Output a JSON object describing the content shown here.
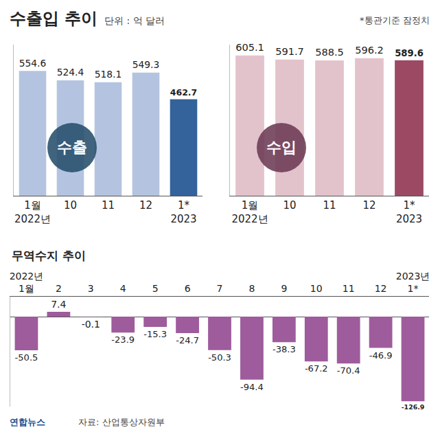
{
  "header": {
    "title": "수출입 추이",
    "unit": "단위 : 억 달러",
    "note": "*통관기준 잠정치"
  },
  "footer": {
    "source": "자료: 산업통상자원부",
    "credit": "연합뉴스"
  },
  "chart_data": [
    {
      "type": "bar",
      "title": "수출",
      "categories": [
        "1월\n2022년",
        "10",
        "11",
        "12",
        "1*\n2023"
      ],
      "values": [
        554.6,
        524.4,
        518.1,
        549.3,
        462.7
      ],
      "colors": [
        "#b4c4e0",
        "#b4c4e0",
        "#b4c4e0",
        "#b4c4e0",
        "#34629a"
      ],
      "ylim": [
        150,
        640
      ],
      "yticks": [],
      "grid": false,
      "data_labels": true,
      "tick_labels": "x"
    },
    {
      "type": "bar",
      "title": "수입",
      "categories": [
        "1월\n2022년",
        "10",
        "11",
        "12",
        "1*\n2023"
      ],
      "values": [
        605.1,
        591.7,
        588.5,
        596.2,
        589.6
      ],
      "colors": [
        "#e3c3cb",
        "#e3c3cb",
        "#e3c3cb",
        "#e3c3cb",
        "#9c4a64"
      ],
      "ylim": [
        150,
        640
      ],
      "yticks": [],
      "grid": false,
      "data_labels": true,
      "tick_labels": "x"
    },
    {
      "type": "bar",
      "title": "무역수지 추이",
      "categories": [
        "2022년\n1월",
        "2",
        "3",
        "4",
        "5",
        "6",
        "7",
        "8",
        "9",
        "10",
        "11",
        "12",
        "2023년\n1*"
      ],
      "values": [
        -50.5,
        7.4,
        -0.1,
        -23.9,
        -15.3,
        -24.7,
        -50.3,
        -94.4,
        -38.3,
        -67.2,
        -70.4,
        -46.9,
        -126.9
      ],
      "color": "#9e5c9c",
      "ylim": [
        -135,
        30
      ],
      "yticks": [],
      "grid": false,
      "data_labels": true,
      "tick_labels": "x"
    }
  ]
}
